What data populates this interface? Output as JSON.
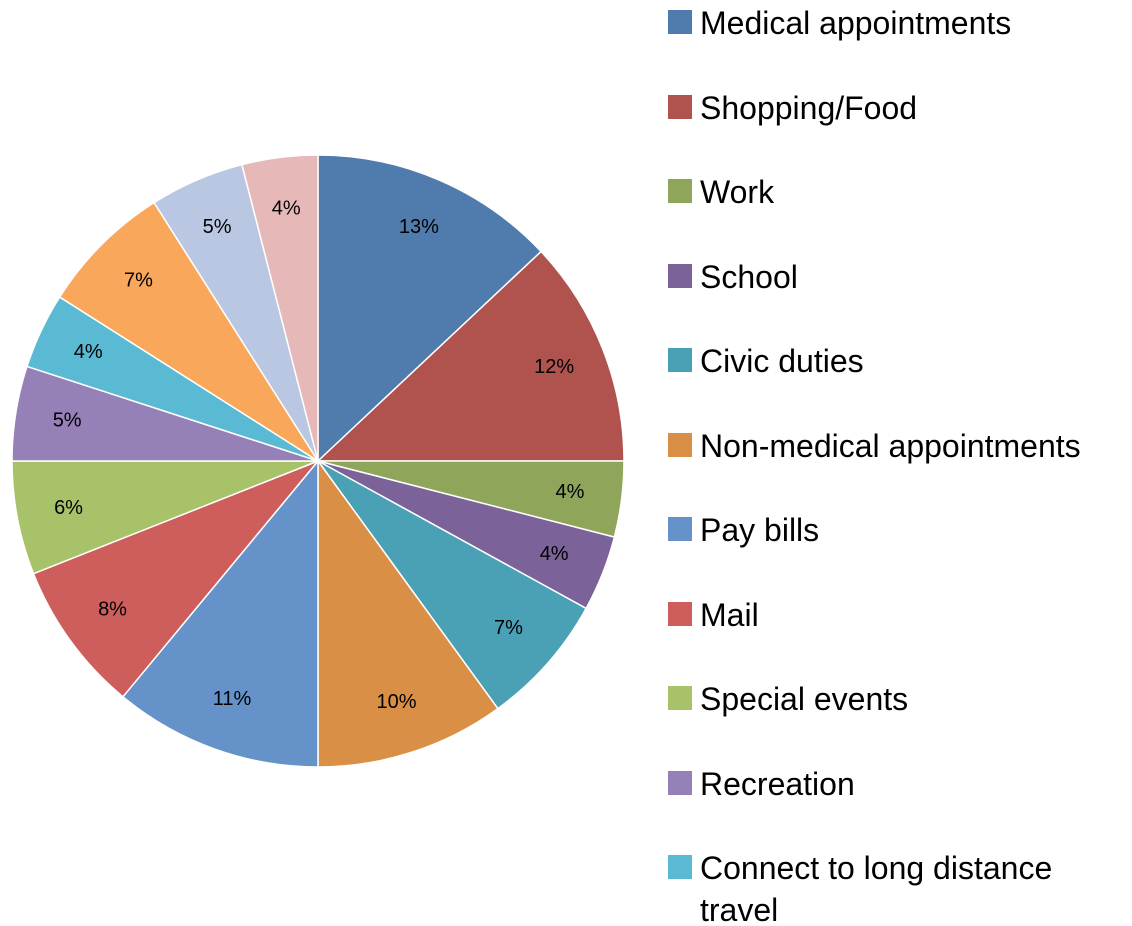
{
  "chart_data": {
    "type": "pie",
    "categories": [
      "Medical appointments",
      "Shopping/Food",
      "Work",
      "School",
      "Civic duties",
      "Non-medical appointments",
      "Pay bills",
      "Mail",
      "Special events",
      "Recreation",
      "Connect to long distance travel",
      null,
      null,
      null
    ],
    "values": [
      13,
      12,
      4,
      4,
      7,
      10,
      11,
      8,
      6,
      5,
      4,
      7,
      5,
      4
    ],
    "value_labels": [
      "13%",
      "12%",
      "4%",
      "4%",
      "7%",
      "10%",
      "11%",
      "8%",
      "6%",
      "5%",
      "4%",
      "7%",
      "5%",
      "4%"
    ],
    "colors": [
      "#4f7bad",
      "#b0524d",
      "#8fa55a",
      "#7b6299",
      "#4aa0b5",
      "#d98f45",
      "#6592c9",
      "#cd5e5b",
      "#a8c26a",
      "#9580b7",
      "#5bbad3",
      "#f9a75a",
      "#b9c7e2",
      "#e6b9b8"
    ],
    "legend": "right"
  }
}
